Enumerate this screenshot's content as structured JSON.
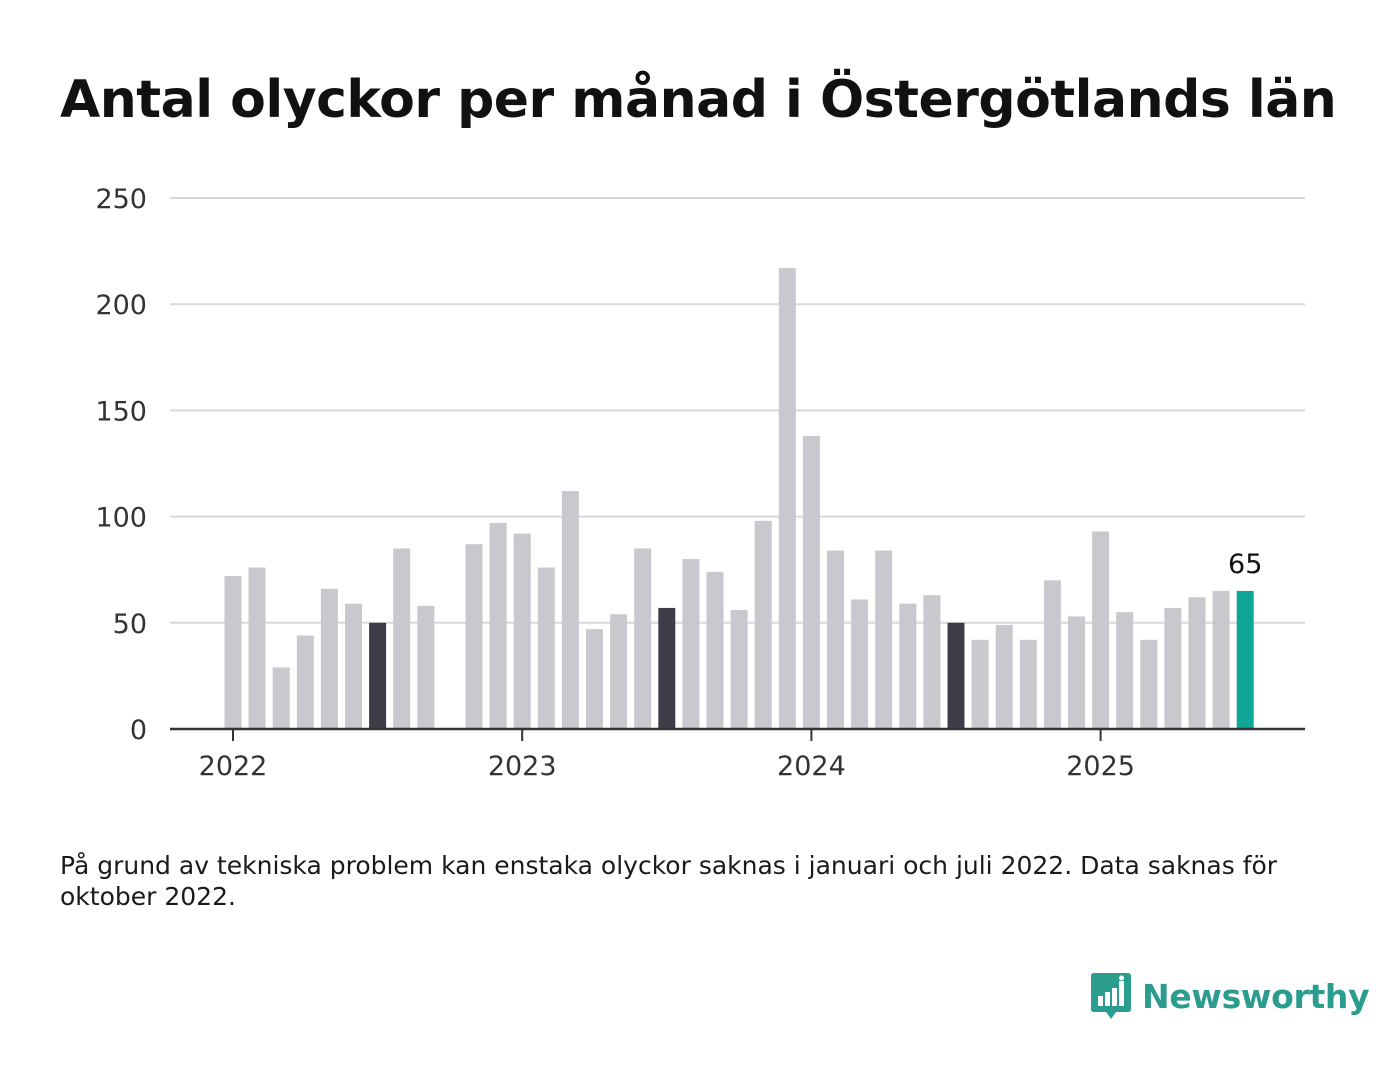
{
  "title": "Antal olyckor per månad i Östergötlands län",
  "note": "På grund av tekniska problem kan enstaka olyckor saknas i januari och juli 2022. Data saknas för oktober 2022.",
  "brand": {
    "name": "Newsworthy",
    "icon": "newsworthy-logo-icon"
  },
  "colors": {
    "default_bar": "#c8c8ce",
    "highlight_bar": "#3d3d4a",
    "latest_bar": "#0fa597",
    "grid": "#d9d9d9",
    "axis": "#333333",
    "brand": "#2a9d8f"
  },
  "chart_data": {
    "type": "bar",
    "title": "Antal olyckor per månad i Östergötlands län",
    "xlabel": "",
    "ylabel": "",
    "ylim": [
      0,
      250
    ],
    "y_ticks": [
      0,
      50,
      100,
      150,
      200,
      250
    ],
    "x_tick_labels": [
      {
        "label": "2022",
        "month": "2022-01"
      },
      {
        "label": "2023",
        "month": "2023-01"
      },
      {
        "label": "2024",
        "month": "2024-01"
      },
      {
        "label": "2025",
        "month": "2025-01"
      }
    ],
    "grid": true,
    "highlighted_months": [
      "2022-07",
      "2023-07",
      "2024-07"
    ],
    "latest_month": "2025-07",
    "latest_label": "65",
    "data": [
      {
        "month": "2022-01",
        "value": 72
      },
      {
        "month": "2022-02",
        "value": 76
      },
      {
        "month": "2022-03",
        "value": 29
      },
      {
        "month": "2022-04",
        "value": 44
      },
      {
        "month": "2022-05",
        "value": 66
      },
      {
        "month": "2022-06",
        "value": 59
      },
      {
        "month": "2022-07",
        "value": 50
      },
      {
        "month": "2022-08",
        "value": 85
      },
      {
        "month": "2022-09",
        "value": 58
      },
      {
        "month": "2022-10",
        "value": null
      },
      {
        "month": "2022-11",
        "value": 87
      },
      {
        "month": "2022-12",
        "value": 97
      },
      {
        "month": "2023-01",
        "value": 92
      },
      {
        "month": "2023-02",
        "value": 76
      },
      {
        "month": "2023-03",
        "value": 112
      },
      {
        "month": "2023-04",
        "value": 47
      },
      {
        "month": "2023-05",
        "value": 54
      },
      {
        "month": "2023-06",
        "value": 85
      },
      {
        "month": "2023-07",
        "value": 57
      },
      {
        "month": "2023-08",
        "value": 80
      },
      {
        "month": "2023-09",
        "value": 74
      },
      {
        "month": "2023-10",
        "value": 56
      },
      {
        "month": "2023-11",
        "value": 98
      },
      {
        "month": "2023-12",
        "value": 217
      },
      {
        "month": "2024-01",
        "value": 138
      },
      {
        "month": "2024-02",
        "value": 84
      },
      {
        "month": "2024-03",
        "value": 61
      },
      {
        "month": "2024-04",
        "value": 84
      },
      {
        "month": "2024-05",
        "value": 59
      },
      {
        "month": "2024-06",
        "value": 63
      },
      {
        "month": "2024-07",
        "value": 50
      },
      {
        "month": "2024-08",
        "value": 42
      },
      {
        "month": "2024-09",
        "value": 49
      },
      {
        "month": "2024-10",
        "value": 42
      },
      {
        "month": "2024-11",
        "value": 70
      },
      {
        "month": "2024-12",
        "value": 53
      },
      {
        "month": "2025-01",
        "value": 93
      },
      {
        "month": "2025-02",
        "value": 55
      },
      {
        "month": "2025-03",
        "value": 42
      },
      {
        "month": "2025-04",
        "value": 57
      },
      {
        "month": "2025-05",
        "value": 62
      },
      {
        "month": "2025-06",
        "value": 65
      },
      {
        "month": "2025-07",
        "value": 65
      }
    ]
  }
}
